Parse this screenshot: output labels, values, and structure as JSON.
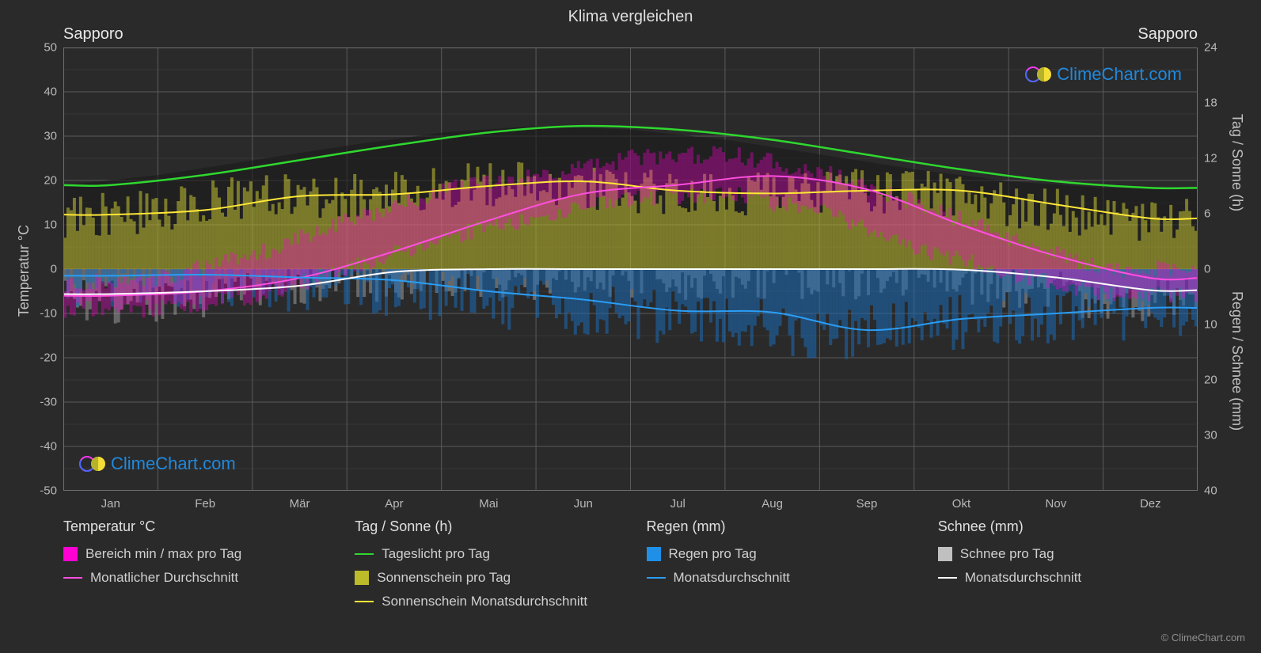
{
  "title": "Klima vergleichen",
  "city_left": "Sapporo",
  "city_right": "Sapporo",
  "axis_left_label": "Temperatur °C",
  "axis_right_label1": "Tag / Sonne (h)",
  "axis_right_label2": "Regen / Schnee (mm)",
  "watermark_text": "ClimeChart.com",
  "copyright": "© ClimeChart.com",
  "background_color": "#2a2a2a",
  "grid": {
    "color": "#5a5a5a",
    "minor_color": "#404040",
    "width": 1
  },
  "x_axis": {
    "labels": [
      "Jan",
      "Feb",
      "Mär",
      "Apr",
      "Mai",
      "Jun",
      "Jul",
      "Aug",
      "Sep",
      "Okt",
      "Nov",
      "Dez"
    ]
  },
  "y_left": {
    "min": -50,
    "max": 50,
    "ticks": [
      -50,
      -40,
      -30,
      -20,
      -10,
      0,
      10,
      20,
      30,
      40,
      50
    ]
  },
  "y_right_top": {
    "comment": "Hours axis maps onto 0..50 of left axis",
    "min": 0,
    "max": 24,
    "ticks": [
      0,
      6,
      12,
      18,
      24
    ],
    "tick_temp_equiv": [
      0,
      12.5,
      25,
      37.5,
      50
    ]
  },
  "y_right_bottom": {
    "comment": "Precip axis maps onto -50..0 of left axis inverted",
    "min": 0,
    "max": 40,
    "ticks": [
      0,
      10,
      20,
      30,
      40
    ],
    "tick_temp_equiv": [
      0,
      -12.5,
      -25,
      -37.5,
      -50
    ]
  },
  "series": {
    "daylight": {
      "color": "#2fd82f",
      "width": 2.5,
      "monthly_hours": [
        9.1,
        10.2,
        11.8,
        13.4,
        14.8,
        15.5,
        15.1,
        14.0,
        12.4,
        10.8,
        9.5,
        8.8
      ]
    },
    "sunshine_avg": {
      "color": "#ffe838",
      "width": 2,
      "monthly_hours": [
        5.9,
        6.4,
        7.9,
        8.1,
        9.0,
        9.5,
        8.5,
        8.2,
        8.5,
        8.5,
        7.0,
        5.5
      ]
    },
    "temp_avg": {
      "color": "#ff4fe0",
      "width": 2,
      "monthly_c": [
        -6,
        -5,
        -2,
        4,
        11,
        17,
        19,
        21,
        18,
        10,
        3,
        -2
      ]
    },
    "temp_range": {
      "color": "#ff00d4",
      "monthly_min": [
        -9,
        -9,
        -6,
        0,
        7,
        12,
        16,
        17,
        13,
        5,
        -1,
        -6
      ],
      "monthly_max": [
        -3,
        -2,
        3,
        11,
        18,
        21,
        25,
        26,
        22,
        15,
        7,
        0
      ]
    },
    "rain_avg": {
      "color": "#2a9df4",
      "width": 2,
      "monthly_mm": [
        1.2,
        1.0,
        1.5,
        2.0,
        4.0,
        5.5,
        7.5,
        7.8,
        11.0,
        9.0,
        8.0,
        7.0
      ]
    },
    "snow_avg": {
      "color": "#ffffff",
      "width": 2,
      "monthly_mm": [
        4.5,
        4.0,
        3.0,
        0.5,
        0,
        0,
        0,
        0,
        0,
        0.1,
        1.5,
        3.8
      ]
    },
    "sunshine_bars": {
      "color": "#bdbb2a",
      "opacity": 0.55
    },
    "rain_bars": {
      "color": "#1a6bb8",
      "opacity": 0.55
    },
    "snow_bars": {
      "color": "#9a9a9a",
      "opacity": 0.55
    }
  },
  "legend": {
    "col1": {
      "header": "Temperatur °C",
      "items": [
        {
          "swatch_type": "box",
          "color": "#ff00d4",
          "label": "Bereich min / max pro Tag"
        },
        {
          "swatch_type": "line",
          "color": "#ff4fe0",
          "label": "Monatlicher Durchschnitt"
        }
      ]
    },
    "col2": {
      "header": "Tag / Sonne (h)",
      "items": [
        {
          "swatch_type": "line",
          "color": "#2fd82f",
          "label": "Tageslicht pro Tag"
        },
        {
          "swatch_type": "box",
          "color": "#bdbb2a",
          "label": "Sonnenschein pro Tag"
        },
        {
          "swatch_type": "line",
          "color": "#ffe838",
          "label": "Sonnenschein Monatsdurchschnitt"
        }
      ]
    },
    "col3": {
      "header": "Regen (mm)",
      "items": [
        {
          "swatch_type": "box",
          "color": "#1f8fe8",
          "label": "Regen pro Tag"
        },
        {
          "swatch_type": "line",
          "color": "#2a9df4",
          "label": "Monatsdurchschnitt"
        }
      ]
    },
    "col4": {
      "header": "Schnee (mm)",
      "items": [
        {
          "swatch_type": "box",
          "color": "#c0c0c0",
          "label": "Schnee pro Tag"
        },
        {
          "swatch_type": "line",
          "color": "#ffffff",
          "label": "Monatsdurchschnitt"
        }
      ]
    }
  }
}
